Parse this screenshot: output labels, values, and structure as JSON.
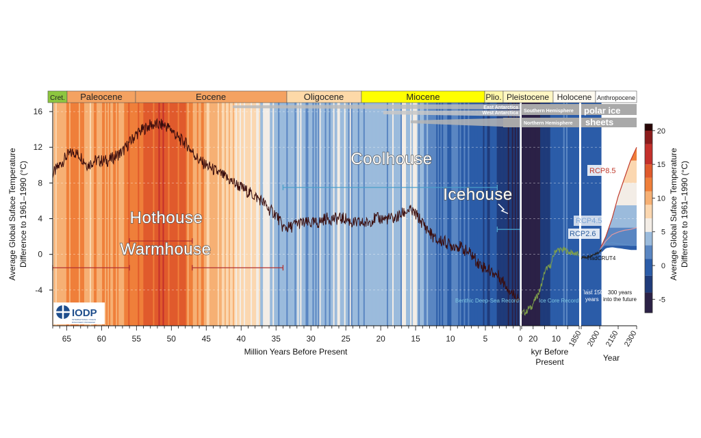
{
  "colors": {
    "curve": "#3a0d0d",
    "ice_core": "#7fa04a",
    "accent_blue": "#4a9fc9",
    "accent_red": "#b03030",
    "rcp85": "#c0392b",
    "rcp45": "#e59aa0",
    "rcp26": "#5d8fc8",
    "hadcrut": "#222222"
  },
  "eras": {
    "cret": "Cret.",
    "paleocene": "Paleocene",
    "eocene": "Eocene",
    "oligocene": "Oligocene",
    "miocene": "Miocene",
    "plio": "Plio.",
    "pleistocene": "Pleistocene",
    "holocene": "Holocene",
    "anthropocene": "Anthropocene"
  },
  "ice_sheets": {
    "east": "East Antarctica",
    "west": "West Antarctica",
    "south": "Southern Hemisphere",
    "north": "Northern Hemisphere",
    "polar1": "polar ice",
    "polar2": "sheets"
  },
  "regimes": {
    "hothouse": "Hothouse",
    "warmhouse": "Warmhouse",
    "coolhouse": "Coolhouse",
    "icehouse": "Icehouse"
  },
  "annotations": {
    "benthic": "Benthic Deep-Sea Record",
    "icecore": "Ice Core Record",
    "last150a": "last 150",
    "last150b": "years",
    "future_a": "300 years",
    "future_b": "into the future",
    "rcp85": "RCP8.5",
    "rcp45": "RCP4.5",
    "rcp26": "RCP2.6",
    "hadcrut": "HadCRUT4"
  },
  "logo": {
    "name": "IODP",
    "sub1": "INTERNATIONAL OCEAN",
    "sub2": "DISCOVERY PROGRAM"
  },
  "axes": {
    "ylabel_1": "Average Global Suface Temperature",
    "ylabel_2": "Difference to 1961–1990 (°C)",
    "xlabel_myr": "Million Years Before Present",
    "xlabel_kyr_1": "kyr Before",
    "xlabel_kyr_2": "Present",
    "xlabel_year": "Year",
    "y_ticks": [
      "16",
      "12",
      "8",
      "4",
      "0",
      "-4"
    ],
    "x_myr_ticks": [
      "65",
      "60",
      "55",
      "50",
      "45",
      "40",
      "35",
      "30",
      "25",
      "20",
      "15",
      "10",
      "5",
      "0"
    ],
    "x_kyr_ticks": [
      "20",
      "10"
    ],
    "x_year_ticks": [
      "1850",
      "2000",
      "2150",
      "2300"
    ],
    "colorbar_ticks": [
      "20",
      "15",
      "10",
      "5",
      "0",
      "-5"
    ],
    "colorbar_label_1": "Average Global Suface Temperature",
    "colorbar_label_2": "Difference to 1961–1990 (°C)"
  },
  "chart_data": {
    "type": "line",
    "title": "",
    "ylabel": "Average Global Suface Temperature Difference to 1961–1990 (°C)",
    "ylim": [
      -8,
      17
    ],
    "segments": [
      {
        "name": "Benthic Deep-Sea Record",
        "xlabel": "Million Years Before Present",
        "xlim": [
          67,
          0
        ],
        "x": [
          67,
          66,
          65,
          64,
          63,
          62,
          61,
          60,
          59,
          58,
          57,
          56,
          55,
          54,
          53,
          52,
          51,
          50,
          49,
          48,
          47,
          46,
          45,
          44,
          43,
          42,
          41,
          40,
          39,
          38,
          37,
          36,
          35,
          34,
          33,
          32,
          31,
          30,
          29,
          28,
          27,
          26,
          25,
          24,
          23,
          22,
          21,
          20,
          19,
          18,
          17,
          16,
          15,
          14,
          13,
          12,
          11,
          10,
          9,
          8,
          7,
          6,
          5,
          4,
          3,
          2,
          1,
          0
        ],
        "values": [
          9,
          10,
          11,
          11.5,
          11,
          10,
          10.5,
          10.5,
          10.5,
          11,
          11.5,
          12.5,
          13.5,
          14,
          14.5,
          14.5,
          14.5,
          14,
          13,
          12.5,
          11.5,
          10.5,
          10,
          9.5,
          9,
          8.5,
          8,
          7.5,
          7,
          6.5,
          6,
          5,
          4.5,
          3,
          3,
          3.5,
          3.5,
          3.5,
          3.5,
          4,
          4,
          4,
          4,
          3.5,
          3.5,
          3.5,
          4,
          4,
          4,
          4,
          4.5,
          5,
          4.5,
          3.5,
          2.5,
          1.5,
          1.5,
          1,
          1,
          0.5,
          0,
          -1,
          -1.5,
          -2,
          -2.5,
          -3.5,
          -4.5,
          -5
        ]
      },
      {
        "name": "Ice Core Record",
        "xlabel": "kyr Before Present",
        "xlim": [
          25,
          0
        ],
        "x": [
          25,
          24,
          23,
          22,
          21,
          20,
          19,
          18,
          17,
          16,
          15,
          14,
          13,
          12,
          11,
          10,
          9,
          8,
          7,
          6,
          5,
          4,
          3,
          2,
          1,
          0
        ],
        "values": [
          -6.5,
          -6.5,
          -6.5,
          -6,
          -6,
          -5.5,
          -5,
          -4.5,
          -4,
          -3,
          -2,
          -1.5,
          -1.5,
          -1,
          0,
          0.5,
          0.5,
          0.5,
          0.5,
          0.5,
          0.3,
          0.2,
          0.2,
          0.1,
          0,
          0
        ]
      },
      {
        "name": "HadCRUT4",
        "xlabel": "Year",
        "xlim": [
          1850,
          2300
        ],
        "x": [
          1850,
          1900,
          1950,
          2000,
          2015
        ],
        "values": [
          -0.4,
          -0.3,
          0,
          0.3,
          0.5
        ]
      },
      {
        "name": "RCP8.5",
        "xlabel": "Year",
        "x": [
          2000,
          2050,
          2100,
          2150,
          2200,
          2250,
          2300
        ],
        "values": [
          0.5,
          2,
          4,
          6.5,
          8.5,
          10.5,
          12
        ]
      },
      {
        "name": "RCP4.5",
        "xlabel": "Year",
        "x": [
          2000,
          2050,
          2100,
          2150,
          2200,
          2250,
          2300
        ],
        "values": [
          0.5,
          1.5,
          2.2,
          2.5,
          2.7,
          2.8,
          3
        ]
      },
      {
        "name": "RCP2.6",
        "xlabel": "Year",
        "x": [
          2000,
          2050,
          2100,
          2150,
          2200,
          2250,
          2300
        ],
        "values": [
          0.5,
          1.2,
          1.3,
          1.2,
          1.1,
          1.0,
          1.0
        ]
      }
    ],
    "regime_ranges_myr": [
      {
        "name": "Warmhouse",
        "from": 67,
        "to": 56
      },
      {
        "name": "Hothouse",
        "from": 56,
        "to": 47
      },
      {
        "name": "Warmhouse",
        "from": 47,
        "to": 34
      },
      {
        "name": "Coolhouse",
        "from": 34,
        "to": 3.3
      },
      {
        "name": "Icehouse",
        "from": 3.3,
        "to": 0
      }
    ],
    "colorbar": {
      "min": -7,
      "max": 21
    },
    "grid": true
  }
}
